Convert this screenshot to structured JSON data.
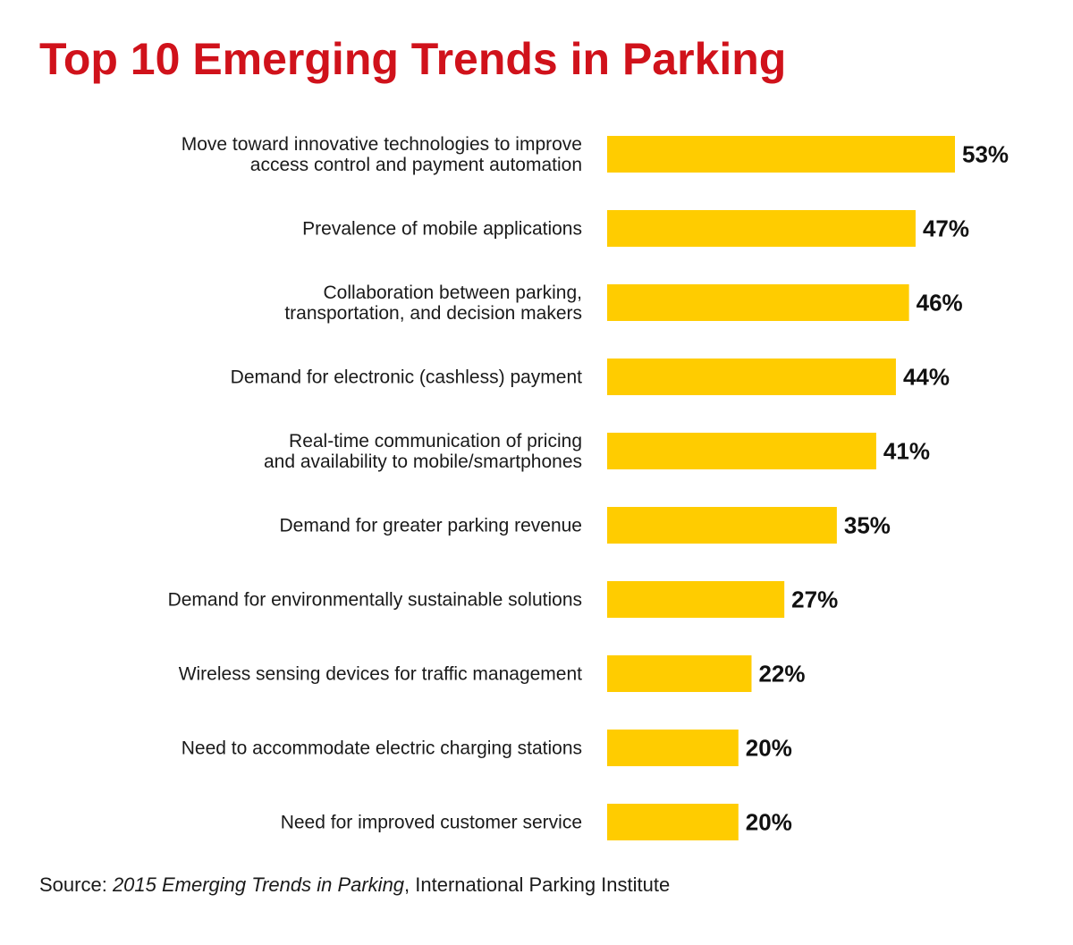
{
  "title": "Top 10 Emerging Trends in Parking",
  "colors": {
    "title": "#d0121b",
    "bar": "#ffcc00",
    "text": "#1a1a1a"
  },
  "source": {
    "prefix": "Source: ",
    "publication": "2015 Emerging Trends in Parking",
    "suffix": ", International Parking Institute"
  },
  "chart_data": {
    "type": "bar",
    "orientation": "horizontal",
    "categories": [
      [
        "Move toward innovative technologies to improve",
        "access control and payment automation"
      ],
      [
        "Prevalence of mobile applications"
      ],
      [
        "Collaboration between parking,",
        "transportation, and decision makers"
      ],
      [
        "Demand for electronic (cashless) payment"
      ],
      [
        "Real-time communication of pricing",
        "and availability to mobile/smartphones"
      ],
      [
        "Demand for greater parking revenue"
      ],
      [
        "Demand for environmentally sustainable solutions"
      ],
      [
        "Wireless sensing devices for traffic management"
      ],
      [
        "Need to accommodate electric charging stations"
      ],
      [
        "Need for improved customer service"
      ]
    ],
    "values": [
      53,
      47,
      46,
      44,
      41,
      35,
      27,
      22,
      20,
      20
    ],
    "value_labels": [
      "53%",
      "47%",
      "46%",
      "44%",
      "41%",
      "35%",
      "27%",
      "22%",
      "20%",
      "20%"
    ],
    "grid": false,
    "legend": "none"
  }
}
